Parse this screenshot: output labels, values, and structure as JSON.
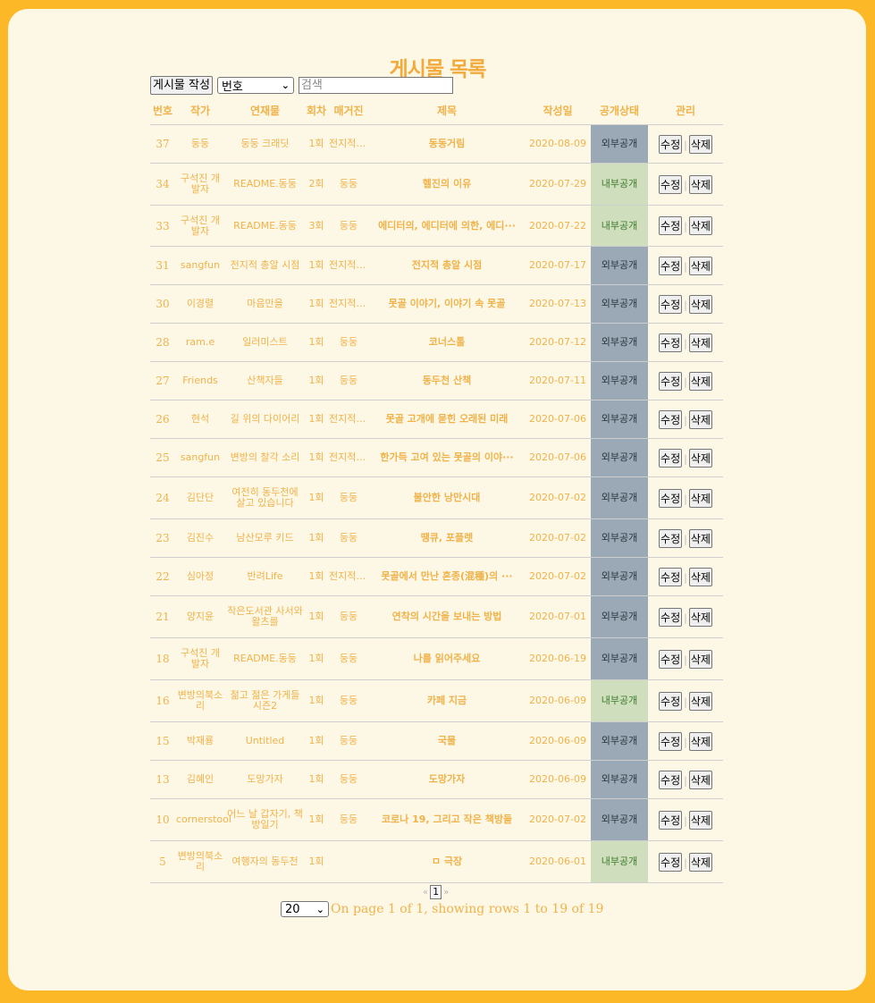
{
  "page_title": "게시물 목록",
  "toolbar": {
    "write_label": "게시물 작성",
    "filter_selected": "번호",
    "search_placeholder": "검색"
  },
  "columns": [
    "번호",
    "작가",
    "연재물",
    "회차",
    "매거진",
    "제목",
    "작성일",
    "공개상태",
    "관리"
  ],
  "rows": [
    {
      "no": "37",
      "author": "둥둥",
      "series": "둥둥 크래딧",
      "ep": "1회",
      "mag": "전지적 ···",
      "title": "동동거림",
      "date": "2020-08-09",
      "status": "외부공개",
      "type": "ext"
    },
    {
      "no": "34",
      "author": "구석진 개발자",
      "series": "README.동둥",
      "ep": "2회",
      "mag": "둥둥",
      "title": "헬진의 이유",
      "date": "2020-07-29",
      "status": "내부공개",
      "type": "int"
    },
    {
      "no": "33",
      "author": "구석진 개발자",
      "series": "README.동둥",
      "ep": "3회",
      "mag": "둥둥",
      "title": "에디터의, 에디터에 의한, 에디···",
      "date": "2020-07-22",
      "status": "내부공개",
      "type": "int"
    },
    {
      "no": "31",
      "author": "sangfun",
      "series": "전지적 총알 시점",
      "ep": "1회",
      "mag": "전지적 ···",
      "title": "전지적 총알 시점",
      "date": "2020-07-17",
      "status": "외부공개",
      "type": "ext"
    },
    {
      "no": "30",
      "author": "이경렬",
      "series": "마음만을",
      "ep": "1회",
      "mag": "전지적 ···",
      "title": "못골 이야기, 이야기 속 못골",
      "date": "2020-07-13",
      "status": "외부공개",
      "type": "ext"
    },
    {
      "no": "28",
      "author": "ram.e",
      "series": "일러미스트",
      "ep": "1회",
      "mag": "둥둥",
      "title": "코너스톨",
      "date": "2020-07-12",
      "status": "외부공개",
      "type": "ext"
    },
    {
      "no": "27",
      "author": "Friends",
      "series": "산책자들",
      "ep": "1회",
      "mag": "둥둥",
      "title": "동두천 산책",
      "date": "2020-07-11",
      "status": "외부공개",
      "type": "ext"
    },
    {
      "no": "26",
      "author": "현석",
      "series": "길 위의 다이어리",
      "ep": "1회",
      "mag": "전지적 ···",
      "title": "못골 고개에 묻힌 오래된 미래",
      "date": "2020-07-06",
      "status": "외부공개",
      "type": "ext"
    },
    {
      "no": "25",
      "author": "sangfun",
      "series": "변방의 찰각 소리",
      "ep": "1회",
      "mag": "전지적 ···",
      "title": "한가득 고여 있는 못골의 이야···",
      "date": "2020-07-06",
      "status": "외부공개",
      "type": "ext"
    },
    {
      "no": "24",
      "author": "김단단",
      "series": "여전히 동두천에 살고 있습니다",
      "ep": "1회",
      "mag": "둥둥",
      "title": "불안한 낭만시대",
      "date": "2020-07-02",
      "status": "외부공개",
      "type": "ext"
    },
    {
      "no": "23",
      "author": "김진수",
      "series": "남산모루 키드",
      "ep": "1회",
      "mag": "둥둥",
      "title": "땡큐, 포플렛",
      "date": "2020-07-02",
      "status": "외부공개",
      "type": "ext"
    },
    {
      "no": "22",
      "author": "심아정",
      "series": "반려Life",
      "ep": "1회",
      "mag": "전지적 ···",
      "title": "못골에서 만난 혼종(混種)의 ···",
      "date": "2020-07-02",
      "status": "외부공개",
      "type": "ext"
    },
    {
      "no": "21",
      "author": "양지윤",
      "series": "작은도서관 사서와 왈츠를",
      "ep": "1회",
      "mag": "둥둥",
      "title": "연착의 시간을 보내는 방법",
      "date": "2020-07-01",
      "status": "외부공개",
      "type": "ext"
    },
    {
      "no": "18",
      "author": "구석진 개발자",
      "series": "README.동둥",
      "ep": "1회",
      "mag": "둥둥",
      "title": "나를 읽어주세요",
      "date": "2020-06-19",
      "status": "외부공개",
      "type": "ext"
    },
    {
      "no": "16",
      "author": "변방의북소리",
      "series": "젊고 젊은 가게들 시즌2",
      "ep": "1회",
      "mag": "둥둥",
      "title": "카페 지금",
      "date": "2020-06-09",
      "status": "내부공개",
      "type": "int"
    },
    {
      "no": "15",
      "author": "박재룡",
      "series": "Untitled",
      "ep": "1회",
      "mag": "둥둥",
      "title": "국물",
      "date": "2020-06-09",
      "status": "외부공개",
      "type": "ext"
    },
    {
      "no": "13",
      "author": "김혜인",
      "series": "도망가자",
      "ep": "1회",
      "mag": "둥둥",
      "title": "도망가자",
      "date": "2020-06-09",
      "status": "외부공개",
      "type": "ext"
    },
    {
      "no": "10",
      "author": "cornerstool",
      "series": "어느 날 갑자기, 책방일기",
      "ep": "1회",
      "mag": "둥둥",
      "title": "코로나 19, 그리고 작은 책방들",
      "date": "2020-07-02",
      "status": "외부공개",
      "type": "ext"
    },
    {
      "no": "5",
      "author": "변방의북소리",
      "series": "여행자의 동두천",
      "ep": "1회",
      "mag": "",
      "title": "ㅁ 극장",
      "date": "2020-06-01",
      "status": "내부공개",
      "type": "int"
    }
  ],
  "row_heights": [
    43,
    47,
    46,
    43,
    43,
    43,
    43,
    43,
    43,
    47,
    43,
    43,
    47,
    47,
    47,
    43,
    43,
    47,
    47
  ],
  "actions": {
    "edit_label": "수정",
    "delete_label": "삭제",
    "separator": "|"
  },
  "pagination": {
    "prev": "«",
    "current": "1",
    "next": "»"
  },
  "footer": {
    "page_size": "20",
    "info": "On page 1 of 1, showing rows 1 to 19 of 19"
  },
  "colors": {
    "frame": "#fdb827",
    "panel": "#fdf7e6",
    "text": "#f0b34a",
    "external_bg": "#9aa9b5",
    "internal_bg": "#cfdfbe"
  }
}
